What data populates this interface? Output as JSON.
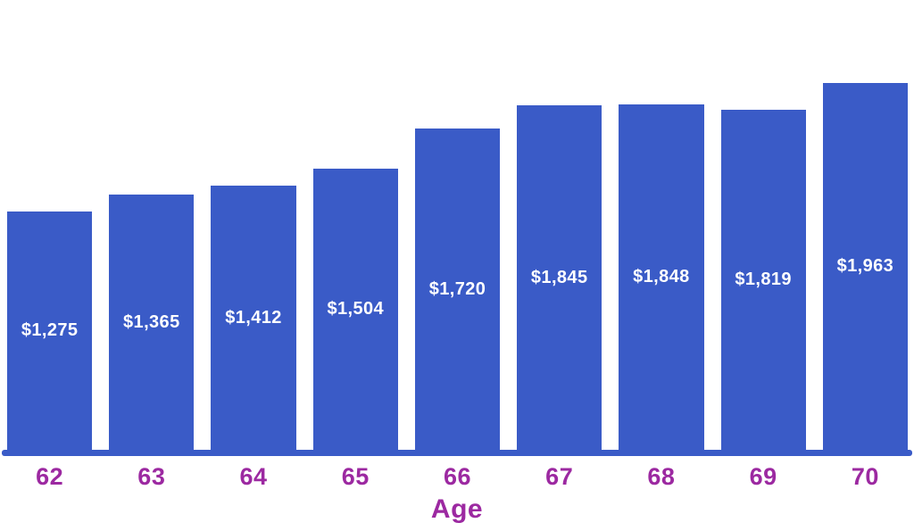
{
  "chart_data": {
    "type": "bar",
    "title": "",
    "xlabel": "Age",
    "ylabel": "",
    "categories": [
      "62",
      "63",
      "64",
      "65",
      "66",
      "67",
      "68",
      "69",
      "70"
    ],
    "values": [
      1275,
      1365,
      1412,
      1504,
      1720,
      1845,
      1848,
      1819,
      1963
    ],
    "bar_labels": [
      "$1,275",
      "$1,365",
      "$1,412",
      "$1,504",
      "$1,720",
      "$1,845",
      "$1,848",
      "$1,819",
      "$1,963"
    ],
    "value_label_position": "inside-center",
    "grid": false,
    "legend": "none",
    "y_axis_visible": false,
    "axis_range_estimate": [
      0,
      2400
    ],
    "colors": {
      "bar": "#3A5BC7",
      "bar_value_label": "#FFFFFF",
      "x_axis_line": "#3A5BC7",
      "tick_label": "#9C29A1",
      "axis_title": "#9C29A1",
      "background": "#FFFFFF"
    }
  }
}
